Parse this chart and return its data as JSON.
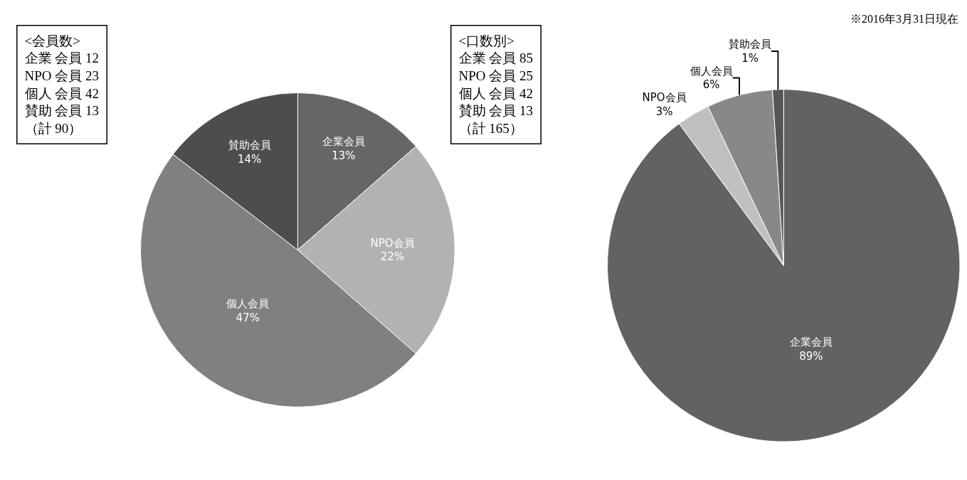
{
  "chart_data": [
    {
      "type": "pie",
      "categories": [
        "企業会員",
        "NPO会員",
        "個人会員",
        "賛助会員"
      ],
      "values": [
        13,
        22,
        47,
        14
      ],
      "value_labels": [
        "13%",
        "22%",
        "47%",
        "14%"
      ],
      "colors": [
        "#666666",
        "#b2b2b2",
        "#808080",
        "#4d4d4d"
      ],
      "annotations": [
        "<会員数>\n企業 会員 12\nNPO 会員 23\n個人 会員 42\n賛助 会員 13\n（計 90）"
      ]
    },
    {
      "type": "pie",
      "categories": [
        "企業会員",
        "NPO会員",
        "個人会員",
        "賛助会員"
      ],
      "values": [
        89,
        3,
        6,
        1
      ],
      "value_labels": [
        "89%",
        "3%",
        "6%",
        "1%"
      ],
      "colors": [
        "#626262",
        "#c0c0c0",
        "#888888",
        "#555555"
      ],
      "annotations": [
        "<口数別>\n企業 会員 85\nNPO 会員 25\n個人 会員 42\n賛助 会員 13\n（計 165）",
        "※2016年3月31日現在"
      ]
    }
  ]
}
